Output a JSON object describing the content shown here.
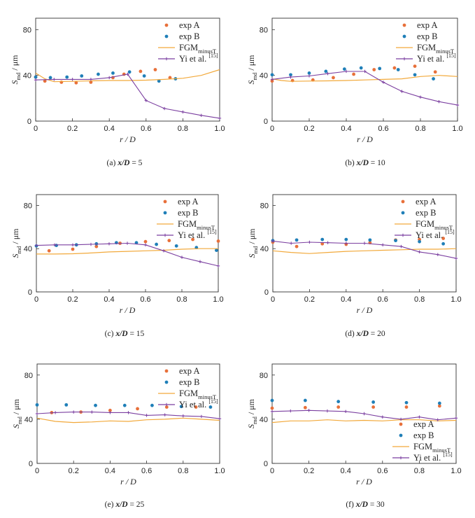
{
  "colors": {
    "exp_a": "#e8703a",
    "exp_b": "#1f7fb8",
    "fgm": "#f2a93b",
    "yi": "#7b3fa0"
  },
  "chart_data": [
    {
      "type": "line",
      "caption": "(a) x/D = 5",
      "xlabel": "r / D",
      "ylabel": "S_md / μm",
      "xlim": [
        0,
        1
      ],
      "ylim": [
        0,
        90
      ],
      "xticks": [
        "0",
        "0.2",
        "0.4",
        "0.6",
        "0.8",
        "1.0"
      ],
      "yticks": [
        "0",
        "40",
        "80"
      ],
      "legend": [
        "exp A",
        "exp B",
        "FGM minusT",
        "Yi et al. [15]"
      ],
      "legend_position": "top-right",
      "series": [
        {
          "name": "exp A",
          "kind": "scatter",
          "x": [
            0.0,
            0.05,
            0.14,
            0.22,
            0.3,
            0.42,
            0.48,
            0.57,
            0.65,
            0.73
          ],
          "y": [
            38.5,
            35,
            34,
            33.5,
            34,
            38,
            41,
            43.5,
            45,
            38
          ]
        },
        {
          "name": "exp B",
          "kind": "scatter",
          "x": [
            0.0,
            0.08,
            0.17,
            0.25,
            0.34,
            0.42,
            0.51,
            0.59,
            0.67,
            0.76
          ],
          "y": [
            38.5,
            38,
            38.5,
            39.5,
            41,
            42,
            43,
            39.5,
            35,
            37
          ]
        },
        {
          "name": "FGM minusT",
          "kind": "line",
          "x": [
            0,
            0.05,
            0.1,
            0.2,
            0.3,
            0.4,
            0.5,
            0.6,
            0.7,
            0.8,
            0.9,
            1.0
          ],
          "y": [
            42,
            37,
            34.5,
            34.8,
            35.2,
            35.5,
            35.5,
            35.8,
            36.5,
            37.5,
            40,
            45
          ]
        },
        {
          "name": "Yi et al. [15]",
          "kind": "line",
          "x": [
            0,
            0.1,
            0.2,
            0.3,
            0.4,
            0.5,
            0.6,
            0.7,
            0.8,
            0.9,
            1.0
          ],
          "y": [
            36,
            36.5,
            36.5,
            36.5,
            38,
            41,
            18,
            11,
            8,
            5,
            2.5
          ]
        }
      ]
    },
    {
      "type": "line",
      "caption": "(b) x/D = 10",
      "xlabel": "r / D",
      "ylabel": "S_md / μm",
      "xlim": [
        0,
        1
      ],
      "ylim": [
        0,
        90
      ],
      "xticks": [
        "0",
        "0.2",
        "0.4",
        "0.6",
        "0.8",
        "1.0"
      ],
      "yticks": [
        "0",
        "40",
        "80"
      ],
      "legend": [
        "exp A",
        "exp B",
        "FGM minusT",
        "Yi et al. [15]"
      ],
      "legend_position": "top-right",
      "series": [
        {
          "name": "exp A",
          "kind": "scatter",
          "x": [
            0.0,
            0.11,
            0.22,
            0.33,
            0.44,
            0.55,
            0.66,
            0.77,
            0.88
          ],
          "y": [
            35,
            35.5,
            36,
            38,
            41,
            45,
            46.5,
            48,
            43
          ]
        },
        {
          "name": "exp B",
          "kind": "scatter",
          "x": [
            0.0,
            0.1,
            0.2,
            0.29,
            0.39,
            0.48,
            0.58,
            0.68,
            0.77,
            0.87
          ],
          "y": [
            40.5,
            40.5,
            42,
            43.5,
            45.5,
            46.5,
            46,
            45,
            40.5,
            37
          ]
        },
        {
          "name": "FGM minusT",
          "kind": "line",
          "x": [
            0,
            0.05,
            0.1,
            0.2,
            0.3,
            0.4,
            0.5,
            0.6,
            0.7,
            0.8,
            0.9,
            1.0
          ],
          "y": [
            37,
            35.5,
            34.8,
            35,
            35.2,
            35.5,
            36,
            36.5,
            37,
            39,
            40,
            39
          ]
        },
        {
          "name": "Yi et al. [15]",
          "kind": "line",
          "x": [
            0,
            0.1,
            0.2,
            0.3,
            0.4,
            0.5,
            0.6,
            0.7,
            0.8,
            0.9,
            1.0
          ],
          "y": [
            36.5,
            38.5,
            39.5,
            41.5,
            43.5,
            43.5,
            34,
            26,
            21,
            17,
            14
          ]
        }
      ]
    },
    {
      "type": "line",
      "caption": "(c) x/D = 15",
      "xlabel": "r / D",
      "ylabel": "S_md / μm",
      "xlim": [
        0,
        1
      ],
      "ylim": [
        0,
        90
      ],
      "xticks": [
        "0",
        "0.2",
        "0.4",
        "0.6",
        "0.8",
        "1.0"
      ],
      "yticks": [
        "0",
        "40",
        "80"
      ],
      "legend": [
        "exp A",
        "exp B",
        "FGM minusT",
        "Yi et al. [15]"
      ],
      "legend_position": "top-right",
      "series": [
        {
          "name": "exp A",
          "kind": "scatter",
          "x": [
            0.07,
            0.2,
            0.33,
            0.46,
            0.6,
            0.73,
            0.86,
            1.0
          ],
          "y": [
            38,
            39.5,
            42,
            45,
            46.5,
            47.5,
            48.5,
            47
          ]
        },
        {
          "name": "exp B",
          "kind": "scatter",
          "x": [
            0.0,
            0.11,
            0.22,
            0.33,
            0.44,
            0.55,
            0.66,
            0.77,
            0.88,
            0.99
          ],
          "y": [
            42.5,
            43,
            43.5,
            44.5,
            45.5,
            45.5,
            44,
            42.5,
            41,
            38.5
          ]
        },
        {
          "name": "FGM minusT",
          "kind": "line",
          "x": [
            0,
            0.1,
            0.2,
            0.3,
            0.4,
            0.5,
            0.6,
            0.7,
            0.8,
            0.9,
            1.0
          ],
          "y": [
            35,
            35,
            35.3,
            36,
            37,
            37.5,
            38,
            38.5,
            39.5,
            40,
            40
          ]
        },
        {
          "name": "Yi et al. [15]",
          "kind": "line",
          "x": [
            0,
            0.1,
            0.2,
            0.3,
            0.4,
            0.5,
            0.6,
            0.7,
            0.8,
            0.9,
            1.0
          ],
          "y": [
            43,
            43.5,
            43.5,
            44,
            44.5,
            45,
            43.5,
            38,
            32,
            28,
            24
          ]
        }
      ]
    },
    {
      "type": "line",
      "caption": "(d) x/D = 20",
      "xlabel": "r / D",
      "ylabel": "S_md / μm",
      "xlim": [
        0,
        1
      ],
      "ylim": [
        0,
        90
      ],
      "xticks": [
        "0",
        "0.2",
        "0.4",
        "0.6",
        "0.8",
        "1.0"
      ],
      "yticks": [
        "0",
        "40",
        "80"
      ],
      "legend": [
        "exp A",
        "exp B",
        "FGM minusT",
        "Yi et al. [15]"
      ],
      "legend_position": "top-right",
      "series": [
        {
          "name": "exp A",
          "kind": "scatter",
          "x": [
            0.0,
            0.13,
            0.27,
            0.4,
            0.53,
            0.67,
            0.8,
            0.93
          ],
          "y": [
            46,
            42,
            44.5,
            44,
            45.5,
            48,
            48.5,
            49.5
          ]
        },
        {
          "name": "exp B",
          "kind": "scatter",
          "x": [
            0.0,
            0.13,
            0.27,
            0.4,
            0.53,
            0.67,
            0.8,
            0.93
          ],
          "y": [
            47.5,
            48,
            48.5,
            48.5,
            48,
            47.5,
            46.5,
            44.5
          ]
        },
        {
          "name": "FGM minusT",
          "kind": "line",
          "x": [
            0,
            0.1,
            0.2,
            0.3,
            0.4,
            0.5,
            0.6,
            0.7,
            0.8,
            0.9,
            1.0
          ],
          "y": [
            38,
            36.5,
            35.5,
            36.5,
            37.5,
            38,
            38.5,
            39,
            39.5,
            39.5,
            40
          ]
        },
        {
          "name": "Yi et al. [15]",
          "kind": "line",
          "x": [
            0,
            0.1,
            0.2,
            0.3,
            0.4,
            0.5,
            0.6,
            0.7,
            0.8,
            0.9,
            1.0
          ],
          "y": [
            47,
            45,
            46,
            45.5,
            45,
            45,
            43.5,
            42,
            37,
            34.5,
            31
          ]
        }
      ]
    },
    {
      "type": "line",
      "caption": "(e) x/D = 25",
      "xlabel": "r / D",
      "ylabel": "S_md / μm",
      "xlim": [
        0,
        1
      ],
      "ylim": [
        0,
        90
      ],
      "xticks": [
        "0",
        "0.2",
        "0.4",
        "0.6",
        "0.8",
        "1.0"
      ],
      "yticks": [
        "0",
        "40",
        "80"
      ],
      "legend": [
        "exp A",
        "exp B",
        "FGM minusT",
        "Yi et al. [15]"
      ],
      "legend_position": "top-right",
      "series": [
        {
          "name": "exp A",
          "kind": "scatter",
          "x": [
            0.08,
            0.24,
            0.4,
            0.55,
            0.71,
            0.87
          ],
          "y": [
            46,
            46.5,
            48,
            49.5,
            51,
            51
          ]
        },
        {
          "name": "exp B",
          "kind": "scatter",
          "x": [
            0.0,
            0.16,
            0.32,
            0.48,
            0.63,
            0.79,
            0.95
          ],
          "y": [
            53,
            53,
            52.5,
            52.5,
            52.5,
            51.5,
            51
          ]
        },
        {
          "name": "FGM minusT",
          "kind": "line",
          "x": [
            0,
            0.1,
            0.2,
            0.3,
            0.4,
            0.5,
            0.6,
            0.7,
            0.8,
            0.9,
            1.0
          ],
          "y": [
            41,
            38,
            37,
            37.5,
            38.5,
            38,
            39.5,
            40,
            41,
            40,
            39
          ]
        },
        {
          "name": "Yi et al. [15]",
          "kind": "line",
          "x": [
            0,
            0.1,
            0.2,
            0.3,
            0.4,
            0.5,
            0.6,
            0.7,
            0.8,
            0.9,
            1.0
          ],
          "y": [
            45,
            46,
            46.5,
            46.5,
            46,
            46,
            43.5,
            44,
            43,
            42.5,
            40.5
          ]
        }
      ]
    },
    {
      "type": "line",
      "caption": "(f) x/D = 30",
      "xlabel": "r / D",
      "ylabel": "S_md / μm",
      "xlim": [
        0,
        1
      ],
      "ylim": [
        0,
        90
      ],
      "xticks": [
        "0",
        "0.2",
        "0.4",
        "0.6",
        "0.8",
        "1.0"
      ],
      "yticks": [
        "0",
        "40",
        "80"
      ],
      "legend": [
        "exp A",
        "exp B",
        "FGM minusT",
        "Yi et al. [15]"
      ],
      "legend_position": "bottom-left",
      "series": [
        {
          "name": "exp A",
          "kind": "scatter",
          "x": [
            0.0,
            0.18,
            0.36,
            0.55,
            0.73,
            0.91
          ],
          "y": [
            50,
            50.5,
            51,
            51,
            51,
            52
          ]
        },
        {
          "name": "exp B",
          "kind": "scatter",
          "x": [
            0.0,
            0.18,
            0.36,
            0.55,
            0.73,
            0.91
          ],
          "y": [
            57,
            57,
            56,
            55.5,
            55,
            54.5
          ]
        },
        {
          "name": "FGM minusT",
          "kind": "line",
          "x": [
            0,
            0.1,
            0.2,
            0.3,
            0.4,
            0.5,
            0.6,
            0.7,
            0.8,
            0.9,
            1.0
          ],
          "y": [
            37,
            38.5,
            38.5,
            39.5,
            38.5,
            39,
            38.5,
            39.5,
            39.5,
            38.5,
            39
          ]
        },
        {
          "name": "Yi et al. [15]",
          "kind": "line",
          "x": [
            0,
            0.1,
            0.2,
            0.3,
            0.4,
            0.5,
            0.6,
            0.7,
            0.8,
            0.9,
            1.0
          ],
          "y": [
            47,
            47.5,
            48,
            47.5,
            47,
            45,
            42,
            40,
            42,
            39.5,
            41
          ]
        }
      ]
    }
  ]
}
